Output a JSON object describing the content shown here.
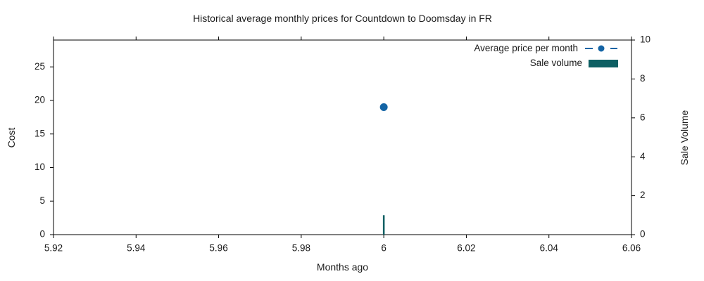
{
  "chart_data": {
    "type": "line+bar",
    "title": "Historical average monthly prices for Countdown to Doomsday in FR",
    "xlabel": "Months ago",
    "ylabel_left": "Cost",
    "ylabel_right": "Sale Volume",
    "xlim": [
      5.92,
      6.06
    ],
    "ylim_left": [
      0,
      29
    ],
    "ylim_right": [
      0,
      10
    ],
    "x_ticks": [
      5.92,
      5.94,
      5.96,
      5.98,
      6,
      6.02,
      6.04,
      6.06
    ],
    "x_tick_labels": [
      "5.92",
      "5.94",
      "5.96",
      "5.98",
      "6",
      "6.02",
      "6.04",
      "6.06"
    ],
    "y_ticks_left": [
      0,
      5,
      10,
      15,
      20,
      25
    ],
    "y_tick_labels_left": [
      "0",
      "5",
      "10",
      "15",
      "20",
      "25"
    ],
    "y_ticks_right": [
      0,
      2,
      4,
      6,
      8,
      10
    ],
    "y_tick_labels_right": [
      "0",
      "2",
      "4",
      "6",
      "8",
      "10"
    ],
    "grid": false,
    "background_color": "#ffffff",
    "spine_color": "#000000",
    "legend_position": "upper right",
    "series": [
      {
        "name": "Average price per month",
        "type": "line",
        "linestyle": "dashed",
        "marker": "circle",
        "color": "#1464a5",
        "axis": "left",
        "x": [
          6
        ],
        "y": [
          19
        ]
      },
      {
        "name": "Sale volume",
        "type": "bar",
        "color": "#0d5f63",
        "axis": "right",
        "x": [
          6
        ],
        "y": [
          1
        ]
      }
    ]
  }
}
